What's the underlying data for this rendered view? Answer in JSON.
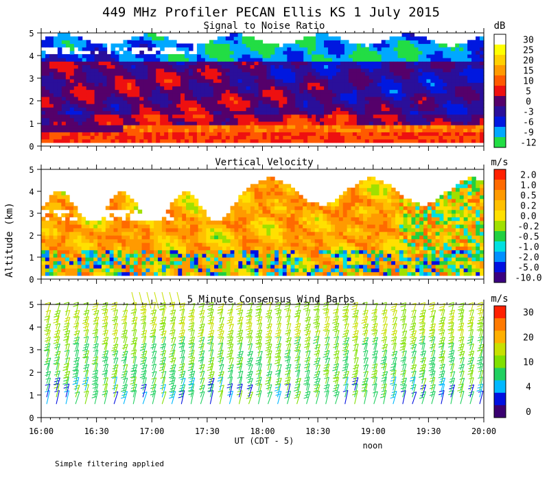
{
  "title": "449 MHz Profiler PECAN Ellis KS  1 July 2015",
  "ylabel": "Altitude (km)",
  "xlabel": "UT  (CDT - 5)",
  "noon_label": "noon",
  "footnote": "Simple filtering applied",
  "chart_data": [
    {
      "id": "snr",
      "type": "heatmap",
      "title": "Signal to Noise Ratio",
      "units": "dB",
      "x_ticks": [
        "16:00",
        "16:30",
        "17:00",
        "17:30",
        "18:00",
        "18:30",
        "19:00",
        "19:30",
        "20:00"
      ],
      "xlim_hours": [
        16,
        20
      ],
      "ylim": [
        0,
        5
      ],
      "y_ticks": [
        "0",
        "1",
        "2",
        "3",
        "4",
        "5"
      ],
      "colorbar": [
        {
          "label": "30",
          "color": "#ffffff"
        },
        {
          "label": "25",
          "color": "#ffff00"
        },
        {
          "label": "20",
          "color": "#ffd000"
        },
        {
          "label": "15",
          "color": "#ff9a00"
        },
        {
          "label": "10",
          "color": "#ff5a00"
        },
        {
          "label": "5",
          "color": "#ee1010"
        },
        {
          "label": "0",
          "color": "#55006a"
        },
        {
          "label": "-3",
          "color": "#2a0f9a"
        },
        {
          "label": "-6",
          "color": "#0018e0"
        },
        {
          "label": "-9",
          "color": "#00a8ff"
        },
        {
          "label": "-12",
          "color": "#22dd44"
        }
      ]
    },
    {
      "id": "vvel",
      "type": "heatmap",
      "title": "Vertical Velocity",
      "units": "m/s",
      "x_ticks": [
        "16:00",
        "16:30",
        "17:00",
        "17:30",
        "18:00",
        "18:30",
        "19:00",
        "19:30",
        "20:00"
      ],
      "xlim_hours": [
        16,
        20
      ],
      "ylim": [
        0,
        5
      ],
      "y_ticks": [
        "0",
        "1",
        "2",
        "3",
        "4",
        "5"
      ],
      "colorbar": [
        {
          "label": "2.0",
          "color": "#ff2000"
        },
        {
          "label": "1.0",
          "color": "#ff6a00"
        },
        {
          "label": "0.5",
          "color": "#ff9a00"
        },
        {
          "label": "0.2",
          "color": "#ffc000"
        },
        {
          "label": "0.0",
          "color": "#ffe000"
        },
        {
          "label": "-0.2",
          "color": "#a0e000"
        },
        {
          "label": "-0.5",
          "color": "#20d040"
        },
        {
          "label": "-1.0",
          "color": "#00e0e0"
        },
        {
          "label": "-2.0",
          "color": "#0090ff"
        },
        {
          "label": "-5.0",
          "color": "#0010e0"
        },
        {
          "label": "-10.0",
          "color": "#3a0080"
        }
      ]
    },
    {
      "id": "wind",
      "type": "scatter",
      "title": "5 Minute Consensus Wind Barbs",
      "units": "m/s",
      "x_ticks": [
        "16:00",
        "16:30",
        "17:00",
        "17:30",
        "18:00",
        "18:30",
        "19:00",
        "19:30",
        "20:00"
      ],
      "xlim_hours": [
        16,
        20
      ],
      "ylim": [
        0,
        5
      ],
      "y_ticks": [
        "0",
        "1",
        "2",
        "3",
        "4",
        "5"
      ],
      "colorbar": [
        {
          "label": "30",
          "color": "#ff2000"
        },
        {
          "label": "",
          "color": "#ff7a00"
        },
        {
          "label": "20",
          "color": "#ffb000"
        },
        {
          "label": "",
          "color": "#c8e000"
        },
        {
          "label": "10",
          "color": "#80e000"
        },
        {
          "label": "",
          "color": "#20d060"
        },
        {
          "label": "4",
          "color": "#00b8ff"
        },
        {
          "label": "",
          "color": "#0010e0"
        },
        {
          "label": "0",
          "color": "#3a0070"
        }
      ]
    }
  ]
}
